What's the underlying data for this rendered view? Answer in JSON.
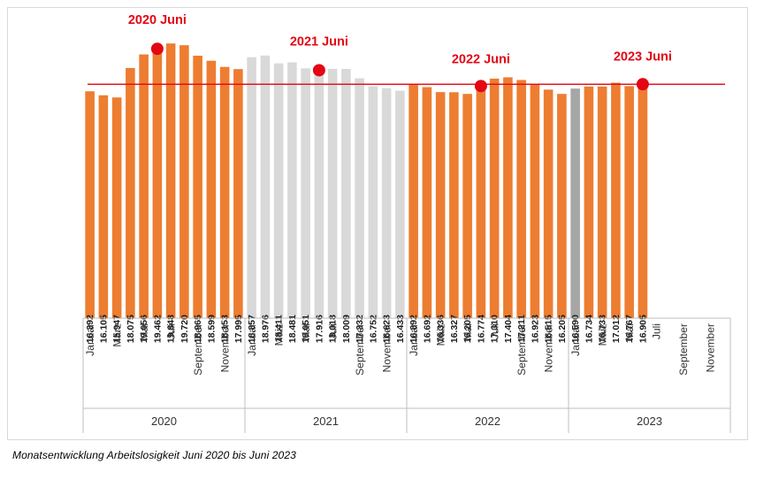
{
  "chart_data": {
    "type": "bar",
    "title": "",
    "xlabel": "",
    "ylabel": "",
    "ylim": [
      0,
      20500
    ],
    "grid": false,
    "reference_line": {
      "value": 16905,
      "color": "#e30613"
    },
    "colors": {
      "orange": "#ed7d31",
      "lightgray": "#d9d9d9",
      "gray": "#a6a6a6",
      "red": "#e30613",
      "axis": "#bfbfbf"
    },
    "years": [
      {
        "label": "2020",
        "month_labels": [
          "Januar",
          "",
          "März",
          "",
          "Mai",
          "",
          "Juli",
          "",
          "September",
          "",
          "November",
          ""
        ],
        "values": [
          16392,
          16105,
          15947,
          18075,
          19056,
          19462,
          19848,
          19720,
          18965,
          18599,
          18153,
          17995
        ],
        "colors": [
          "orange",
          "orange",
          "orange",
          "orange",
          "orange",
          "orange",
          "orange",
          "orange",
          "orange",
          "orange",
          "orange",
          "orange"
        ]
      },
      {
        "label": "2021",
        "month_labels": [
          "Januar",
          "",
          "Mäiz",
          "",
          "Mai",
          "",
          "Juli",
          "",
          "September",
          "",
          "November",
          ""
        ],
        "values": [
          18857,
          18976,
          18411,
          18481,
          18051,
          17916,
          18018,
          18009,
          17332,
          16752,
          16623,
          16433
        ],
        "colors": [
          "lightgray",
          "lightgray",
          "lightgray",
          "lightgray",
          "lightgray",
          "lightgray",
          "lightgray",
          "lightgray",
          "lightgray",
          "lightgray",
          "lightgray",
          "lightgray"
        ]
      },
      {
        "label": "2022",
        "month_labels": [
          "Januar",
          "",
          "Mäiz",
          "",
          "Mai",
          "",
          "Juli",
          "",
          "September",
          "",
          "November",
          ""
        ],
        "values": [
          16892,
          16692,
          16336,
          16327,
          16205,
          16774,
          17310,
          17404,
          17211,
          16923,
          16515,
          16205
        ],
        "colors": [
          "orange",
          "orange",
          "orange",
          "orange",
          "orange",
          "orange",
          "orange",
          "orange",
          "orange",
          "orange",
          "orange",
          "orange"
        ]
      },
      {
        "label": "2023",
        "month_labels": [
          "Januar",
          "",
          "Mäiz",
          "",
          "Mai",
          "",
          "Juli",
          "",
          "September",
          "",
          "November",
          ""
        ],
        "values": [
          16590,
          16734,
          16733,
          17012,
          16767,
          16905,
          null,
          null,
          null,
          null,
          null,
          null
        ],
        "colors": [
          "gray",
          "orange",
          "orange",
          "orange",
          "orange",
          "orange",
          "",
          "",
          "",
          "",
          "",
          ""
        ]
      }
    ],
    "annotations": [
      {
        "label": "2020 Juni",
        "year_index": 0,
        "month_index": 5,
        "value": 19462
      },
      {
        "label": "2021 Juni",
        "year_index": 1,
        "month_index": 5,
        "value": 17916
      },
      {
        "label": "2022 Juni",
        "year_index": 2,
        "month_index": 5,
        "value": 16774
      },
      {
        "label": "2023 Juni",
        "year_index": 3,
        "month_index": 5,
        "value": 16905
      }
    ]
  },
  "caption": "Monatsentwicklung Arbeitslosigkeit Juni 2020 bis Juni 2023"
}
